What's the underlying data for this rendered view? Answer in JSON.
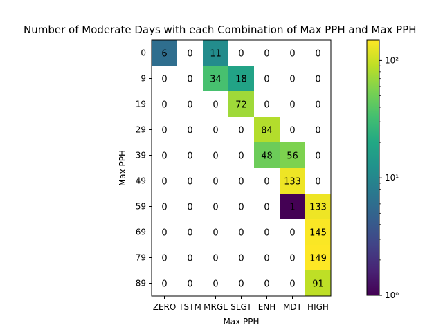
{
  "chart_data": {
    "type": "heatmap",
    "title": "Number of Moderate Days with each Combination of Max PPH and Max PPH",
    "xlabel": "Max PPH",
    "ylabel": "Max PPH",
    "x_categories": [
      "ZERO",
      "TSTM",
      "MRGL",
      "SLGT",
      "ENH",
      "MDT",
      "HIGH"
    ],
    "y_categories": [
      "0",
      "9",
      "19",
      "29",
      "39",
      "49",
      "59",
      "69",
      "79",
      "89"
    ],
    "values": [
      [
        6,
        0,
        11,
        0,
        0,
        0,
        0
      ],
      [
        0,
        0,
        34,
        18,
        0,
        0,
        0
      ],
      [
        0,
        0,
        0,
        72,
        0,
        0,
        0
      ],
      [
        0,
        0,
        0,
        0,
        84,
        0,
        0
      ],
      [
        0,
        0,
        0,
        0,
        48,
        56,
        0
      ],
      [
        0,
        0,
        0,
        0,
        0,
        133,
        0
      ],
      [
        0,
        0,
        0,
        0,
        0,
        1,
        133
      ],
      [
        0,
        0,
        0,
        0,
        0,
        0,
        145
      ],
      [
        0,
        0,
        0,
        0,
        0,
        0,
        149
      ],
      [
        0,
        0,
        0,
        0,
        0,
        0,
        91
      ]
    ],
    "colorscale": "viridis",
    "color_scale_type": "log",
    "color_range": [
      1,
      149
    ],
    "colorbar_ticks": [
      {
        "value": 1,
        "label": "10⁰"
      },
      {
        "value": 10,
        "label": "10¹"
      },
      {
        "value": 100,
        "label": "10²"
      }
    ],
    "grid": false
  }
}
